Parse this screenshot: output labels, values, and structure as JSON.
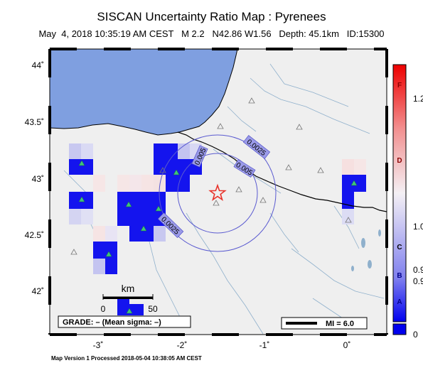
{
  "title": "SISCAN Uncertainty Ratio Map : Pyrenees",
  "subtitle": "May  4, 2018 10:35:19 AM CEST   M 2.2   N42.86 W1.56   Depth: 45.1km   ID:15300",
  "footer": "Map Version 1 Processed 2018-05-04 10:38:05 AM CEST",
  "lat_labels": [
    {
      "text": "44˚",
      "value": 44.0
    },
    {
      "text": "43.5˚",
      "value": 43.5
    },
    {
      "text": "43˚",
      "value": 43.0
    },
    {
      "text": "42.5˚",
      "value": 42.5
    },
    {
      "text": "42˚",
      "value": 42.0
    }
  ],
  "lon_labels": [
    {
      "text": "-3˚",
      "value": -3
    },
    {
      "text": "-2˚",
      "value": -2
    },
    {
      "text": "-1˚",
      "value": -1
    },
    {
      "text": "0˚",
      "value": 0
    }
  ],
  "contour_labels": [
    "0.005",
    "0.0025",
    "0.005",
    "0.0025"
  ],
  "scale_bar": {
    "unit": "km",
    "start": "0",
    "end": "50"
  },
  "grade_label": "GRADE: – (Mean sigma: –)",
  "mi_label": "MI = 6.0",
  "colorbar": {
    "left_labels": [
      "F",
      "D",
      "C",
      "B",
      "A"
    ],
    "right_labels": [
      "1.2",
      "1.0",
      "0.9",
      "0.9",
      "0"
    ]
  },
  "colors": {
    "ocean": "#7f9fe0",
    "land": "#efefef",
    "epicenter": "#e8322a",
    "station": "#1e9a3e",
    "contour": "#5a5ad0",
    "high_cell": "#1414ee"
  }
}
